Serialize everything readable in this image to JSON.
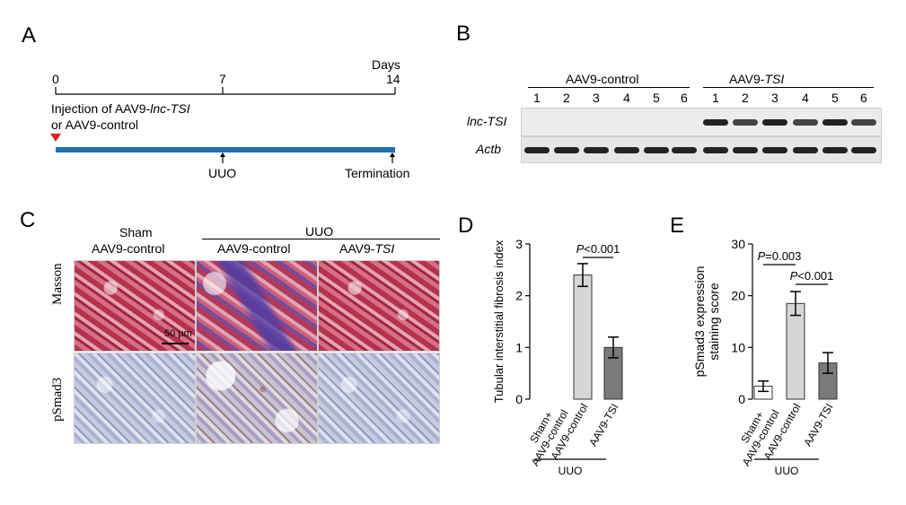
{
  "panel_letters": {
    "a": "A",
    "b": "B",
    "c": "C",
    "d": "D",
    "e": "E"
  },
  "panelA": {
    "days_label": "Days",
    "ticks": [
      "0",
      "7",
      "14"
    ],
    "injection_line1": "Injection of AAV9-",
    "injection_line1_italic": "lnc-TSI",
    "injection_line2": "or AAV9-control",
    "uuo_label": "UUO",
    "termination_label": "Termination",
    "colors": {
      "timeline": "#1f6fb5",
      "marker": "#e02020"
    }
  },
  "panelB": {
    "group1": "AAV9-control",
    "group2_prefix": "AAV9-",
    "group2_italic": "TSI",
    "lanes": [
      "1",
      "2",
      "3",
      "4",
      "5",
      "6",
      "1",
      "2",
      "3",
      "4",
      "5",
      "6"
    ],
    "row1": "lnc-TSI",
    "row2": "Actb"
  },
  "panelC": {
    "sham_line1": "Sham",
    "sham_line2": "AAV9-control",
    "uuo_header": "UUO",
    "col2": "AAV9-control",
    "col3_prefix": "AAV9-",
    "col3_italic": "TSI",
    "row1": "Masson",
    "row2": "pSmad3",
    "scale_bar": "50 μm"
  },
  "chart_data": [
    {
      "type": "bar",
      "title": "",
      "ylabel": "Tubular interstitial fibrosis index",
      "categories": [
        "Sham+ AAV9-control",
        "AAV9-control",
        "AAV9-TSI"
      ],
      "values": [
        0,
        2.4,
        1.0
      ],
      "errors": [
        0,
        0.22,
        0.2
      ],
      "ylim": [
        0,
        3
      ],
      "yticks": [
        "0",
        "1",
        "2",
        "3"
      ],
      "group_label": "UUO",
      "annotations": [
        {
          "text": "P<0.001",
          "between": [
            1,
            2
          ]
        }
      ],
      "colors": [
        "#ffffff",
        "#d6d6d6",
        "#7a7a7a"
      ]
    },
    {
      "type": "bar",
      "title": "",
      "ylabel": "pSmad3 expression staining score",
      "categories": [
        "Sham+ AAV9-control",
        "AAV9-control",
        "AAV9-TSI"
      ],
      "values": [
        2.5,
        18.5,
        7.0
      ],
      "errors": [
        1.0,
        2.3,
        2.0
      ],
      "ylim": [
        0,
        30
      ],
      "yticks": [
        "0",
        "10",
        "20",
        "30"
      ],
      "group_label": "UUO",
      "annotations": [
        {
          "text": "P=0.003",
          "between": [
            0,
            1
          ]
        },
        {
          "text": "P<0.001",
          "between": [
            1,
            2
          ]
        }
      ],
      "colors": [
        "#ffffff",
        "#d6d6d6",
        "#7a7a7a"
      ]
    }
  ]
}
